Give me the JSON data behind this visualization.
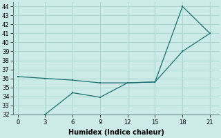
{
  "xlabel": "Humidex (Indice chaleur)",
  "background_color": "#cceae7",
  "grid_color": "#b0d8d4",
  "line_color": "#1a7070",
  "series1_x": [
    0,
    3,
    6,
    9,
    12,
    15,
    18,
    21
  ],
  "series1_y": [
    36.2,
    36.0,
    35.8,
    35.5,
    35.5,
    35.6,
    39.0,
    41.0
  ],
  "series2_x": [
    3,
    6,
    9,
    12,
    15,
    18,
    21
  ],
  "series2_y": [
    32.0,
    34.4,
    33.9,
    35.5,
    35.6,
    44.0,
    41.0
  ],
  "xlim": [
    -0.5,
    22
  ],
  "ylim": [
    32,
    44.5
  ],
  "xticks": [
    0,
    3,
    6,
    9,
    12,
    15,
    18,
    21
  ],
  "yticks": [
    32,
    33,
    34,
    35,
    36,
    37,
    38,
    39,
    40,
    41,
    42,
    43,
    44
  ]
}
